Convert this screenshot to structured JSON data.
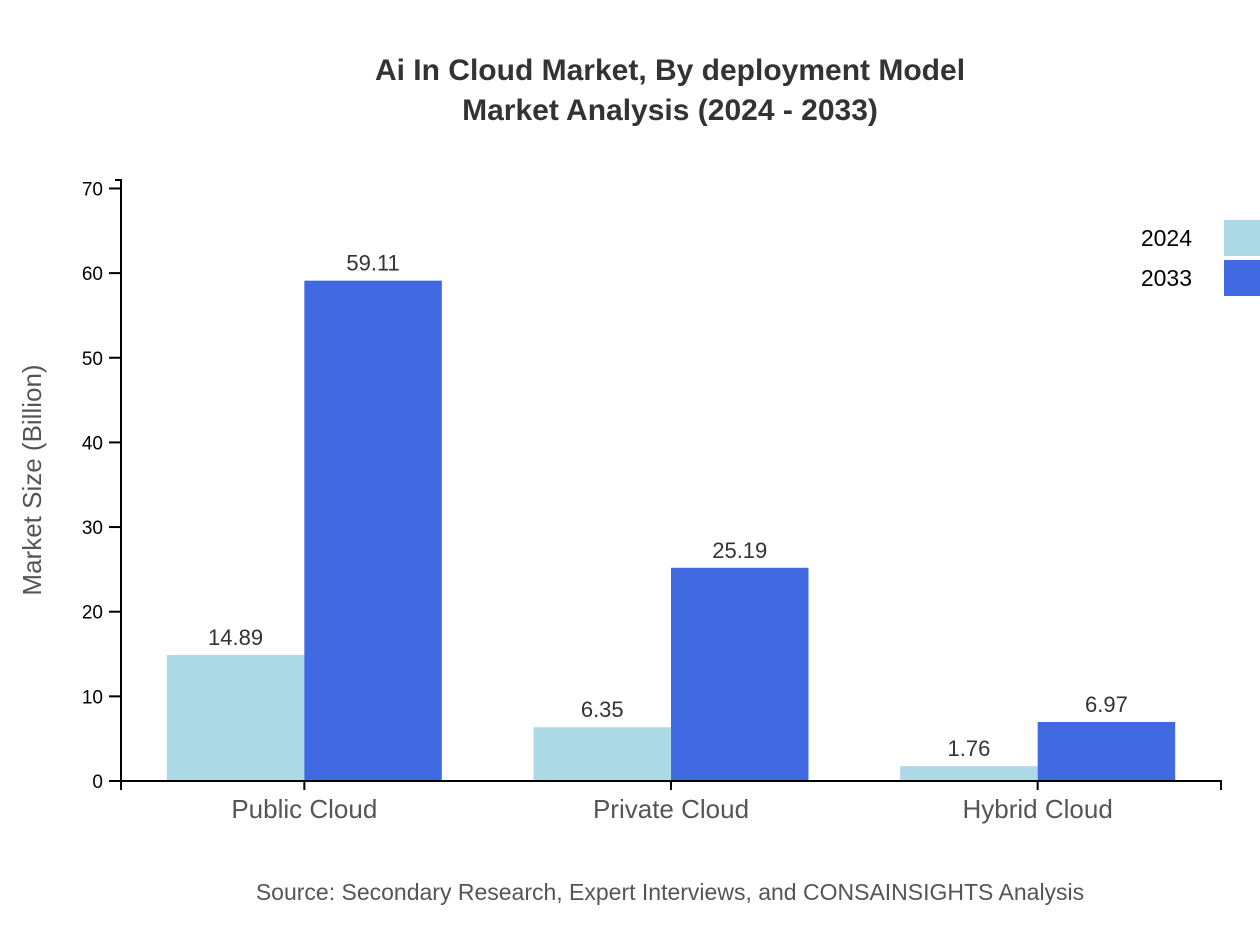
{
  "chart_data": {
    "type": "bar",
    "title": "Ai In Cloud Market, By deployment Model",
    "subtitle": "Market Analysis (2024 - 2033)",
    "xlabel": "",
    "ylabel": "Market Size (Billion)",
    "ylim": [
      0,
      71
    ],
    "yticks": [
      0,
      10,
      20,
      30,
      40,
      50,
      60,
      70
    ],
    "categories": [
      "Public Cloud",
      "Private Cloud",
      "Hybrid Cloud"
    ],
    "series": [
      {
        "name": "2024",
        "values": [
          14.89,
          6.35,
          1.76
        ],
        "color": "#add8e6"
      },
      {
        "name": "2033",
        "values": [
          59.11,
          25.19,
          6.97
        ],
        "color": "#4169e1"
      }
    ],
    "legend_placement": "top-right",
    "grid": false,
    "source": "Source: Secondary Research, Expert Interviews, and CONSAINSIGHTS Analysis"
  }
}
